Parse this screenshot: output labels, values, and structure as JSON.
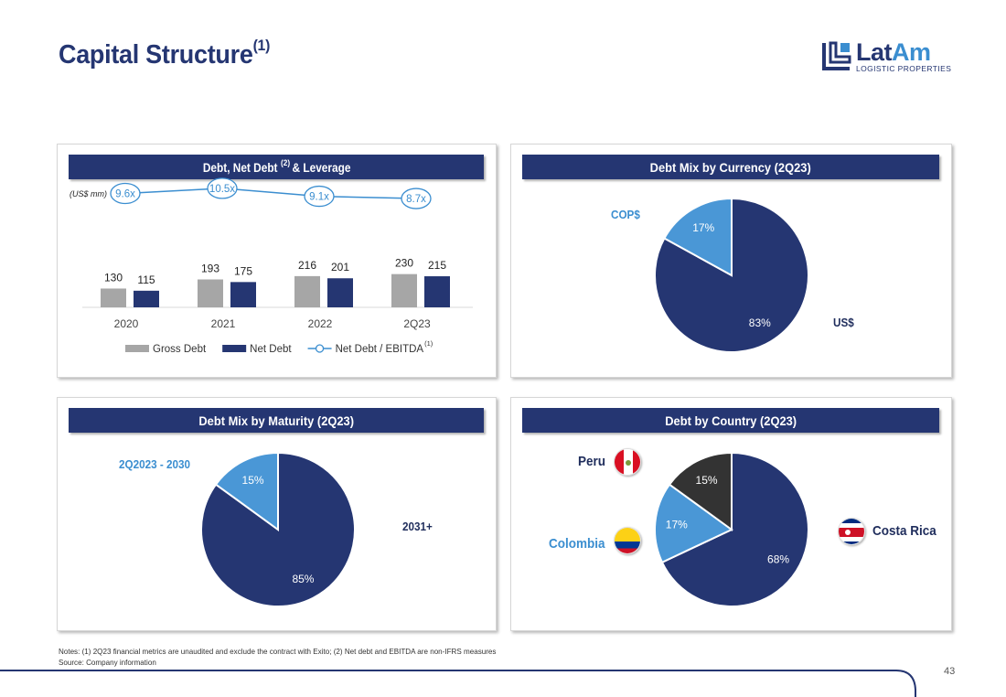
{
  "page": {
    "title": "Capital Structure",
    "title_sup": "(1)",
    "page_number": "43"
  },
  "logo": {
    "main_left": "Lat",
    "main_right": "Am",
    "subtitle": "LOGISTIC PROPERTIES"
  },
  "colors": {
    "navy": "#253672",
    "light_blue": "#4a97d6",
    "gray": "#a6a6a6",
    "dark": "#333333",
    "line": "#3b8ed0"
  },
  "panels": {
    "leverage": {
      "title_pre": "Debt, Net Debt",
      "title_sup": "(2)",
      "title_post": " & Leverage",
      "unit": "(US$ mm)"
    },
    "currency": {
      "title": "Debt Mix by Currency (2Q23)",
      "label_minor": "COP$",
      "label_major": "US$"
    },
    "maturity": {
      "title": "Debt Mix by Maturity (2Q23)",
      "label_minor": "2Q2023 - 2030",
      "label_major": "2031+"
    },
    "country": {
      "title": "Debt by Country (2Q23)",
      "label_peru": "Peru",
      "label_colombia": "Colombia",
      "label_costa_rica": "Costa Rica"
    }
  },
  "chart_data": [
    {
      "type": "bar",
      "title": "Debt, Net Debt(2) & Leverage",
      "unit": "(US$ mm)",
      "categories": [
        "2020",
        "2021",
        "2022",
        "2Q23"
      ],
      "series": [
        {
          "name": "Gross Debt",
          "values": [
            130,
            193,
            216,
            230
          ],
          "color": "#a6a6a6"
        },
        {
          "name": "Net Debt",
          "values": [
            115,
            175,
            201,
            215
          ],
          "color": "#253672"
        }
      ],
      "line_series": {
        "name": "Net Debt / EBITDA",
        "name_sup": "(1)",
        "values": [
          9.6,
          10.5,
          9.1,
          8.7
        ],
        "labels": [
          "9.6x",
          "10.5x",
          "9.1x",
          "8.7x"
        ],
        "color": "#3b8ed0"
      },
      "legend": "bottom"
    },
    {
      "type": "pie",
      "title": "Debt Mix by Currency (2Q23)",
      "slices": [
        {
          "name": "US$",
          "value": 83,
          "label": "83%",
          "color": "#253672"
        },
        {
          "name": "COP$",
          "value": 17,
          "label": "17%",
          "color": "#4a97d6"
        }
      ]
    },
    {
      "type": "pie",
      "title": "Debt Mix by Maturity (2Q23)",
      "slices": [
        {
          "name": "2031+",
          "value": 85,
          "label": "85%",
          "color": "#253672"
        },
        {
          "name": "2Q2023 - 2030",
          "value": 15,
          "label": "15%",
          "color": "#4a97d6"
        }
      ]
    },
    {
      "type": "pie",
      "title": "Debt by Country (2Q23)",
      "slices": [
        {
          "name": "Costa Rica",
          "value": 68,
          "label": "68%",
          "color": "#253672"
        },
        {
          "name": "Colombia",
          "value": 17,
          "label": "17%",
          "color": "#4a97d6"
        },
        {
          "name": "Peru",
          "value": 15,
          "label": "15%",
          "color": "#333333"
        }
      ]
    }
  ],
  "footer": {
    "notes": "Notes: (1) 2Q23 financial metrics are unaudited and exclude the contract with Exito; (2) Net debt and EBITDA are non-IFRS measures",
    "source": "Source: Company information"
  }
}
